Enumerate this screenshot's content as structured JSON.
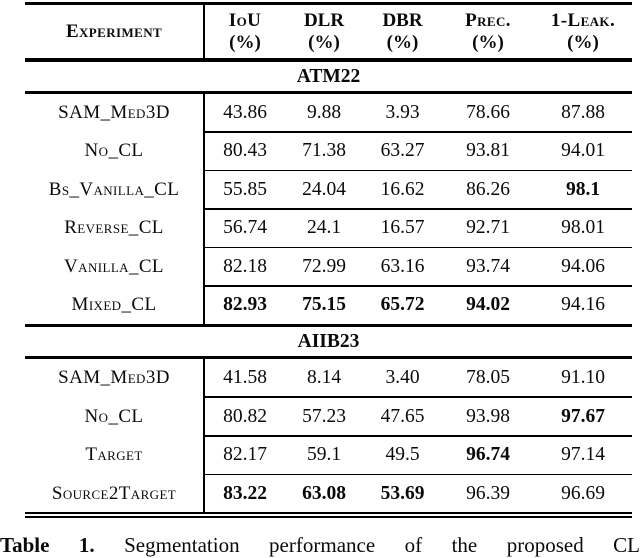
{
  "header": {
    "experiment": "Experiment",
    "columns": [
      {
        "name": "IoU",
        "unit": "(%)"
      },
      {
        "name": "DLR",
        "unit": "(%)"
      },
      {
        "name": "DBR",
        "unit": "(%)"
      },
      {
        "name": "Prec.",
        "unit": "(%)"
      },
      {
        "name": "1-Leak.",
        "unit": "(%)"
      }
    ]
  },
  "sections": [
    {
      "title": "ATM22",
      "rows": [
        {
          "name": "SAM_Med3D",
          "values": [
            "43.86",
            "9.88",
            "3.93",
            "78.66",
            "87.88"
          ],
          "bold": []
        },
        {
          "name": "No_CL",
          "values": [
            "80.43",
            "71.38",
            "63.27",
            "93.81",
            "94.01"
          ],
          "bold": []
        },
        {
          "name": "Bs_Vanilla_CL",
          "values": [
            "55.85",
            "24.04",
            "16.62",
            "86.26",
            "98.1"
          ],
          "bold": [
            4
          ]
        },
        {
          "name": "Reverse_CL",
          "values": [
            "56.74",
            "24.1",
            "16.57",
            "92.71",
            "98.01"
          ],
          "bold": []
        },
        {
          "name": "Vanilla_CL",
          "values": [
            "82.18",
            "72.99",
            "63.16",
            "93.74",
            "94.06"
          ],
          "bold": []
        },
        {
          "name": "Mixed_CL",
          "values": [
            "82.93",
            "75.15",
            "65.72",
            "94.02",
            "94.16"
          ],
          "bold": [
            0,
            1,
            2,
            3
          ]
        }
      ]
    },
    {
      "title": "AIIB23",
      "rows": [
        {
          "name": "SAM_Med3D",
          "values": [
            "41.58",
            "8.14",
            "3.40",
            "78.05",
            "91.10"
          ],
          "bold": []
        },
        {
          "name": "No_CL",
          "values": [
            "80.82",
            "57.23",
            "47.65",
            "93.98",
            "97.67"
          ],
          "bold": [
            4
          ]
        },
        {
          "name": "Target",
          "values": [
            "82.17",
            "59.1",
            "49.5",
            "96.74",
            "97.14"
          ],
          "bold": [
            3
          ]
        },
        {
          "name": "Source2Target",
          "values": [
            "83.22",
            "63.08",
            "53.69",
            "96.39",
            "96.69"
          ],
          "bold": [
            0,
            1,
            2
          ]
        }
      ]
    }
  ],
  "caption": {
    "label": "Table 1.",
    "text": "Segmentation performance of the proposed CL"
  }
}
